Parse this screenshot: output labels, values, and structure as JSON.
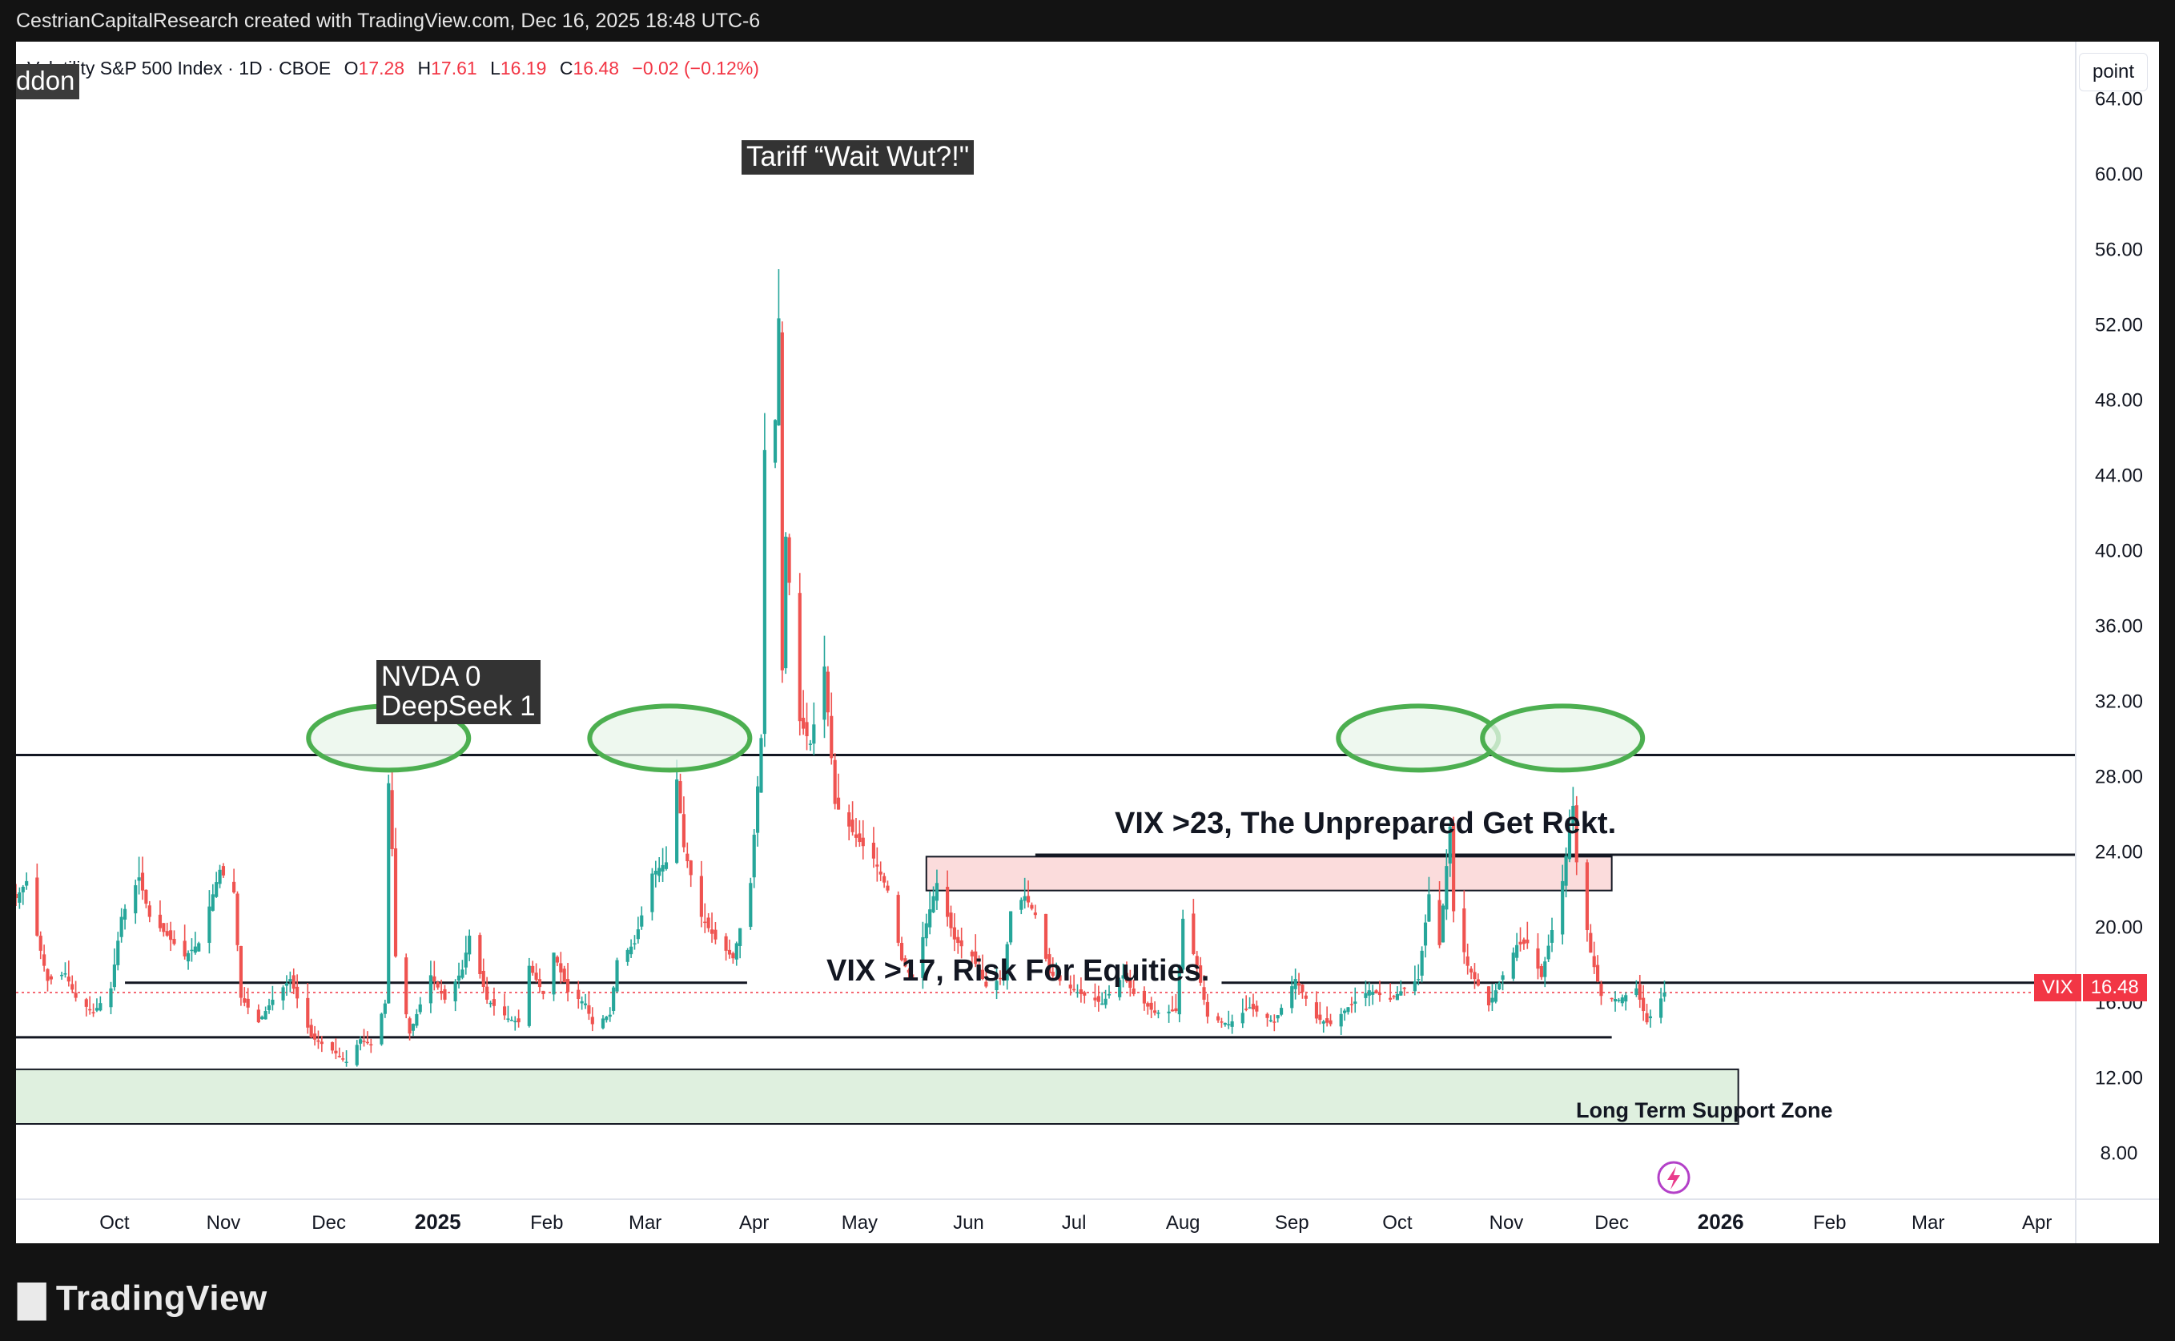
{
  "header": {
    "attribution": "CestrianCapitalResearch created with TradingView.com, Dec 16, 2025 18:48 UTC-6"
  },
  "legend": {
    "title": "Volatility S&P 500 Index · 1D · CBOE",
    "open_label": "O",
    "open_value": "17.28",
    "high_label": "H",
    "high_value": "17.61",
    "low_label": "L",
    "low_value": "16.19",
    "close_label": "C",
    "close_value": "16.48",
    "change": "−0.02 (−0.12%)"
  },
  "addon_tag": "ddon",
  "unit_label": "point",
  "price_tag": {
    "symbol": "VIX",
    "value": "16.48"
  },
  "notes": {
    "tariff": "Tariff “Wait Wut?!\"",
    "nvda_line1": "NVDA 0",
    "nvda_line2": "DeepSeek 1",
    "vix23": "VIX >23, The Unprepared Get Rekt.",
    "vix17": "VIX >17, Risk For Equities.",
    "support": "Long Term Support Zone"
  },
  "footer": {
    "brand": "TradingView"
  },
  "colors": {
    "up": "#26a69a",
    "down": "#ef5350",
    "ellipse": "#4caf50",
    "ellipse_fill": "#e8f5e9",
    "support_fill": "#dff0df",
    "resistance_fill": "#fbdcdc",
    "accent": "#f23645"
  },
  "chart_data": {
    "type": "candlestick",
    "title": "Volatility S&P 500 Index · 1D · CBOE",
    "ylim": [
      5.5,
      67
    ],
    "y_ticks": [
      "64.00",
      "60.00",
      "56.00",
      "52.00",
      "48.00",
      "44.00",
      "40.00",
      "36.00",
      "32.00",
      "28.00",
      "24.00",
      "20.00",
      "16.00",
      "12.00",
      "8.00"
    ],
    "x_ticks": [
      {
        "label": "Oct",
        "date": "2024-10-01"
      },
      {
        "label": "Nov",
        "date": "2024-11-01"
      },
      {
        "label": "Dec",
        "date": "2024-12-01"
      },
      {
        "label": "2025",
        "date": "2025-01-01"
      },
      {
        "label": "Feb",
        "date": "2025-02-01"
      },
      {
        "label": "Mar",
        "date": "2025-03-01"
      },
      {
        "label": "Apr",
        "date": "2025-04-01"
      },
      {
        "label": "May",
        "date": "2025-05-01"
      },
      {
        "label": "Jun",
        "date": "2025-06-01"
      },
      {
        "label": "Jul",
        "date": "2025-07-01"
      },
      {
        "label": "Aug",
        "date": "2025-08-01"
      },
      {
        "label": "Sep",
        "date": "2025-09-01"
      },
      {
        "label": "Oct",
        "date": "2025-10-01"
      },
      {
        "label": "Nov",
        "date": "2025-11-01"
      },
      {
        "label": "Dec",
        "date": "2025-12-01"
      },
      {
        "label": "2026",
        "date": "2026-01-01"
      },
      {
        "label": "Feb",
        "date": "2026-02-01"
      },
      {
        "label": "Mar",
        "date": "2026-03-01"
      },
      {
        "label": "Apr",
        "date": "2026-04-01"
      }
    ],
    "bold_ticks": [
      "2025",
      "2026"
    ],
    "date_range": [
      "2024-09-03",
      "2026-04-12"
    ],
    "last_date": "2025-12-16",
    "levels": {
      "resistance": 29.1,
      "upper": 23.8,
      "mid": 17.0,
      "lower": 14.1,
      "last_close": 16.48
    },
    "zones": {
      "resistance_zone": {
        "from": "2025-05-20",
        "to": "2025-12-01",
        "low": 21.9,
        "high": 23.7
      },
      "support_zone": {
        "from": "2024-09-03",
        "to": "2026-01-06",
        "low": 9.5,
        "high": 12.4
      }
    },
    "ellipses": [
      {
        "center": "2024-12-18",
        "value": 30.0
      },
      {
        "center": "2025-03-08",
        "value": 30.0
      },
      {
        "center": "2025-10-07",
        "value": 30.0
      },
      {
        "center": "2025-11-17",
        "value": 30.0
      }
    ],
    "close_path": [
      [
        "2024-09-03",
        21.5
      ],
      [
        "2024-09-06",
        22.4
      ],
      [
        "2024-09-09",
        19.5
      ],
      [
        "2024-09-12",
        17.1
      ],
      [
        "2024-09-17",
        17.5
      ],
      [
        "2024-09-20",
        16.2
      ],
      [
        "2024-09-25",
        15.4
      ],
      [
        "2024-09-30",
        16.7
      ],
      [
        "2024-10-03",
        20.5
      ],
      [
        "2024-10-08",
        22.6
      ],
      [
        "2024-10-11",
        20.5
      ],
      [
        "2024-10-16",
        19.5
      ],
      [
        "2024-10-21",
        18.4
      ],
      [
        "2024-10-25",
        19.1
      ],
      [
        "2024-10-31",
        23.0
      ],
      [
        "2024-11-04",
        21.8
      ],
      [
        "2024-11-06",
        16.2
      ],
      [
        "2024-11-11",
        14.9
      ],
      [
        "2024-11-15",
        16.1
      ],
      [
        "2024-11-20",
        17.2
      ],
      [
        "2024-11-26",
        14.1
      ],
      [
        "2024-12-02",
        13.4
      ],
      [
        "2024-12-06",
        12.8
      ],
      [
        "2024-12-10",
        14.0
      ],
      [
        "2024-12-13",
        13.7
      ],
      [
        "2024-12-17",
        15.9
      ],
      [
        "2024-12-18",
        27.6
      ],
      [
        "2024-12-19",
        24.1
      ],
      [
        "2024-12-20",
        18.4
      ],
      [
        "2024-12-24",
        14.3
      ],
      [
        "2024-12-30",
        17.4
      ],
      [
        "2025-01-03",
        16.1
      ],
      [
        "2025-01-08",
        17.7
      ],
      [
        "2025-01-10",
        19.5
      ],
      [
        "2025-01-15",
        16.1
      ],
      [
        "2025-01-21",
        15.1
      ],
      [
        "2025-01-24",
        14.9
      ],
      [
        "2025-01-27",
        17.9
      ],
      [
        "2025-01-31",
        16.4
      ],
      [
        "2025-02-03",
        18.6
      ],
      [
        "2025-02-07",
        16.5
      ],
      [
        "2025-02-12",
        15.9
      ],
      [
        "2025-02-14",
        14.8
      ],
      [
        "2025-02-19",
        15.3
      ],
      [
        "2025-02-21",
        18.2
      ],
      [
        "2025-02-26",
        19.1
      ],
      [
        "2025-03-03",
        22.8
      ],
      [
        "2025-03-07",
        23.4
      ],
      [
        "2025-03-10",
        27.8
      ],
      [
        "2025-03-12",
        24.2
      ],
      [
        "2025-03-17",
        20.5
      ],
      [
        "2025-03-21",
        19.3
      ],
      [
        "2025-03-26",
        18.3
      ],
      [
        "2025-03-31",
        22.3
      ],
      [
        "2025-04-03",
        30.0
      ],
      [
        "2025-04-04",
        45.3
      ],
      [
        "2025-04-07",
        46.9
      ],
      [
        "2025-04-08",
        52.3
      ],
      [
        "2025-04-09",
        33.6
      ],
      [
        "2025-04-10",
        40.7
      ],
      [
        "2025-04-14",
        30.9
      ],
      [
        "2025-04-17",
        29.7
      ],
      [
        "2025-04-21",
        33.8
      ],
      [
        "2025-04-24",
        26.5
      ],
      [
        "2025-04-30",
        24.7
      ],
      [
        "2025-05-05",
        23.6
      ],
      [
        "2025-05-09",
        21.9
      ],
      [
        "2025-05-13",
        18.2
      ],
      [
        "2025-05-16",
        17.2
      ],
      [
        "2025-05-21",
        20.9
      ],
      [
        "2025-05-23",
        22.3
      ],
      [
        "2025-05-28",
        19.3
      ],
      [
        "2025-06-02",
        18.4
      ],
      [
        "2025-06-06",
        16.8
      ],
      [
        "2025-06-11",
        17.3
      ],
      [
        "2025-06-13",
        20.8
      ],
      [
        "2025-06-17",
        21.6
      ],
      [
        "2025-06-20",
        20.6
      ],
      [
        "2025-06-24",
        17.5
      ],
      [
        "2025-06-30",
        16.7
      ],
      [
        "2025-07-03",
        16.4
      ],
      [
        "2025-07-09",
        15.9
      ],
      [
        "2025-07-15",
        17.4
      ],
      [
        "2025-07-18",
        16.4
      ],
      [
        "2025-07-24",
        15.4
      ],
      [
        "2025-07-30",
        15.5
      ],
      [
        "2025-08-01",
        20.4
      ],
      [
        "2025-08-05",
        17.9
      ],
      [
        "2025-08-08",
        15.2
      ],
      [
        "2025-08-14",
        14.8
      ],
      [
        "2025-08-20",
        15.7
      ],
      [
        "2025-08-27",
        14.9
      ],
      [
        "2025-09-02",
        17.2
      ],
      [
        "2025-09-08",
        15.1
      ],
      [
        "2025-09-12",
        14.8
      ],
      [
        "2025-09-17",
        15.7
      ],
      [
        "2025-09-23",
        16.6
      ],
      [
        "2025-09-29",
        16.1
      ],
      [
        "2025-10-03",
        16.7
      ],
      [
        "2025-10-07",
        17.2
      ],
      [
        "2025-10-10",
        21.7
      ],
      [
        "2025-10-13",
        19.0
      ],
      [
        "2025-10-16",
        25.3
      ],
      [
        "2025-10-17",
        20.8
      ],
      [
        "2025-10-21",
        17.9
      ],
      [
        "2025-10-27",
        15.8
      ],
      [
        "2025-10-31",
        17.4
      ],
      [
        "2025-11-04",
        19.0
      ],
      [
        "2025-11-07",
        19.1
      ],
      [
        "2025-11-11",
        17.3
      ],
      [
        "2025-11-14",
        19.8
      ],
      [
        "2025-11-17",
        22.4
      ],
      [
        "2025-11-20",
        26.4
      ],
      [
        "2025-11-21",
        23.4
      ],
      [
        "2025-11-25",
        18.6
      ],
      [
        "2025-11-28",
        16.3
      ],
      [
        "2025-12-03",
        16.1
      ],
      [
        "2025-12-08",
        16.7
      ],
      [
        "2025-12-11",
        14.9
      ],
      [
        "2025-12-16",
        16.48
      ]
    ]
  }
}
